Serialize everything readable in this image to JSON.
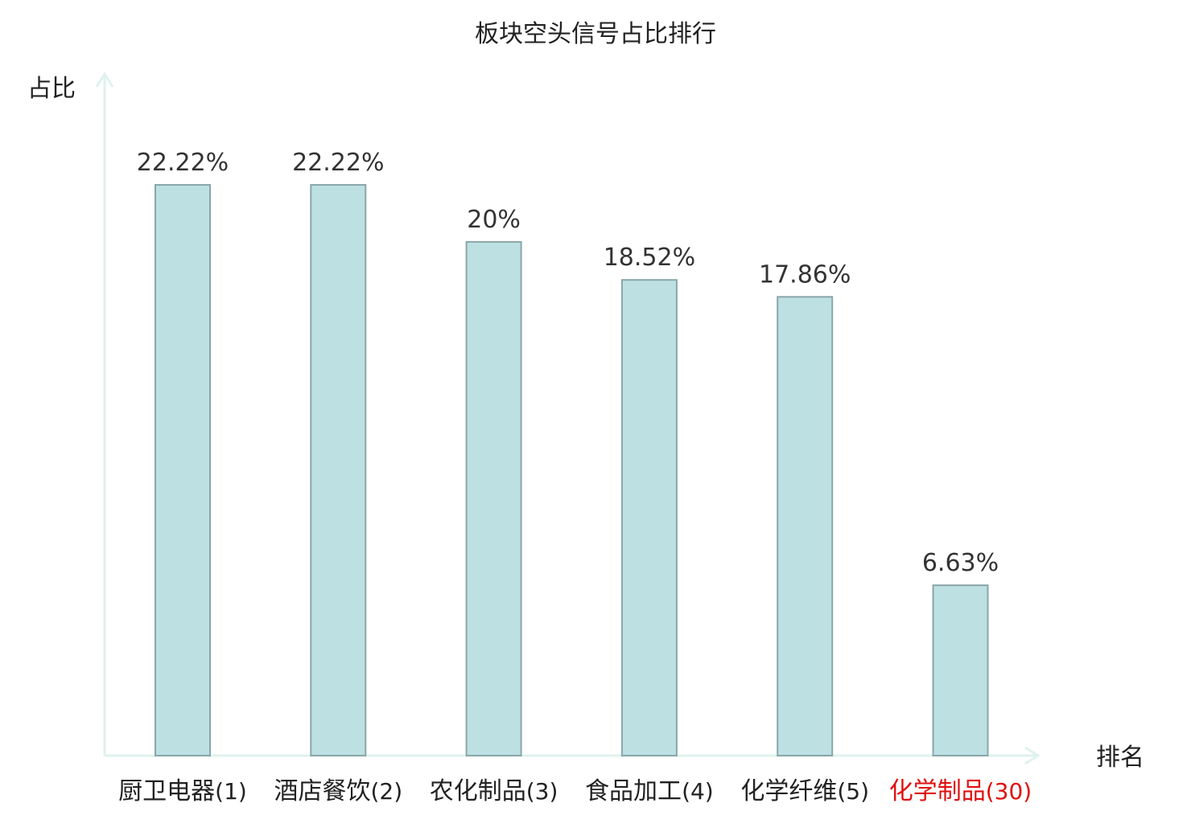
{
  "chart_data": {
    "type": "bar",
    "title": "板块空头信号占比排行",
    "ylabel": "占比",
    "xlabel": "排名",
    "ylim": [
      0,
      26.6
    ],
    "categories": [
      {
        "name": "厨卫电器",
        "rank": "(1)",
        "highlight": false
      },
      {
        "name": "酒店餐饮",
        "rank": "(2)",
        "highlight": false
      },
      {
        "name": "农化制品",
        "rank": "(3)",
        "highlight": false
      },
      {
        "name": "食品加工",
        "rank": "(4)",
        "highlight": false
      },
      {
        "name": "化学纤维",
        "rank": "(5)",
        "highlight": false
      },
      {
        "name": "化学制品",
        "rank": "(30)",
        "highlight": true
      }
    ],
    "values": [
      22.22,
      22.22,
      20,
      18.52,
      17.86,
      6.63
    ],
    "labels": [
      "22.22%",
      "22.22%",
      "20%",
      "18.52%",
      "17.86%",
      "6.63%"
    ],
    "grid": false,
    "colors": {
      "bar_fill": "#bde0e3",
      "bar_stroke": "#8aa6a9",
      "axis": "#dff2ef",
      "label_text": "#333333",
      "category_text": "#222222",
      "highlight_text": "#e01010"
    }
  }
}
